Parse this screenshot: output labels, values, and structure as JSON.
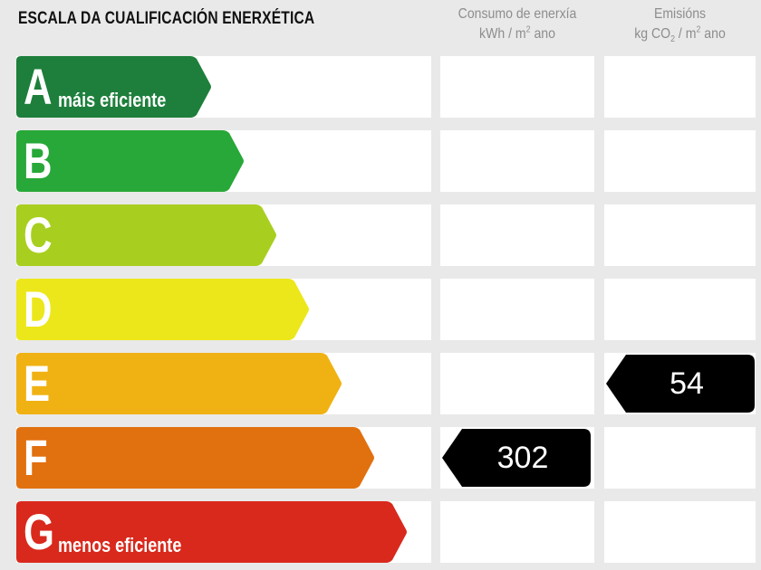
{
  "title": "ESCALA DA CUALIFICACIÓN ENERXÉTICA",
  "columns": [
    {
      "line1": "Consumo de enerxía",
      "unit_pre": "kWh / m",
      "unit_sup": "2",
      "unit_post": " ano"
    },
    {
      "line1": "Emisións",
      "unit_pre": "kg CO",
      "unit_sub": "2",
      "unit_mid": " / m",
      "unit_sup": "2",
      "unit_post": " ano"
    }
  ],
  "classes": [
    {
      "letter": "A",
      "label": "máis eficiente",
      "color": "#1d7f3b"
    },
    {
      "letter": "B",
      "label": "",
      "color": "#27a838"
    },
    {
      "letter": "C",
      "label": "",
      "color": "#a8cf1f"
    },
    {
      "letter": "D",
      "label": "",
      "color": "#ece71a"
    },
    {
      "letter": "E",
      "label": "",
      "color": "#f0b213"
    },
    {
      "letter": "F",
      "label": "",
      "color": "#e1700f"
    },
    {
      "letter": "G",
      "label": "menos eficiente",
      "color": "#d9291c"
    }
  ],
  "consumption": {
    "class": "F",
    "value": "302"
  },
  "emissions": {
    "class": "E",
    "value": "54"
  }
}
